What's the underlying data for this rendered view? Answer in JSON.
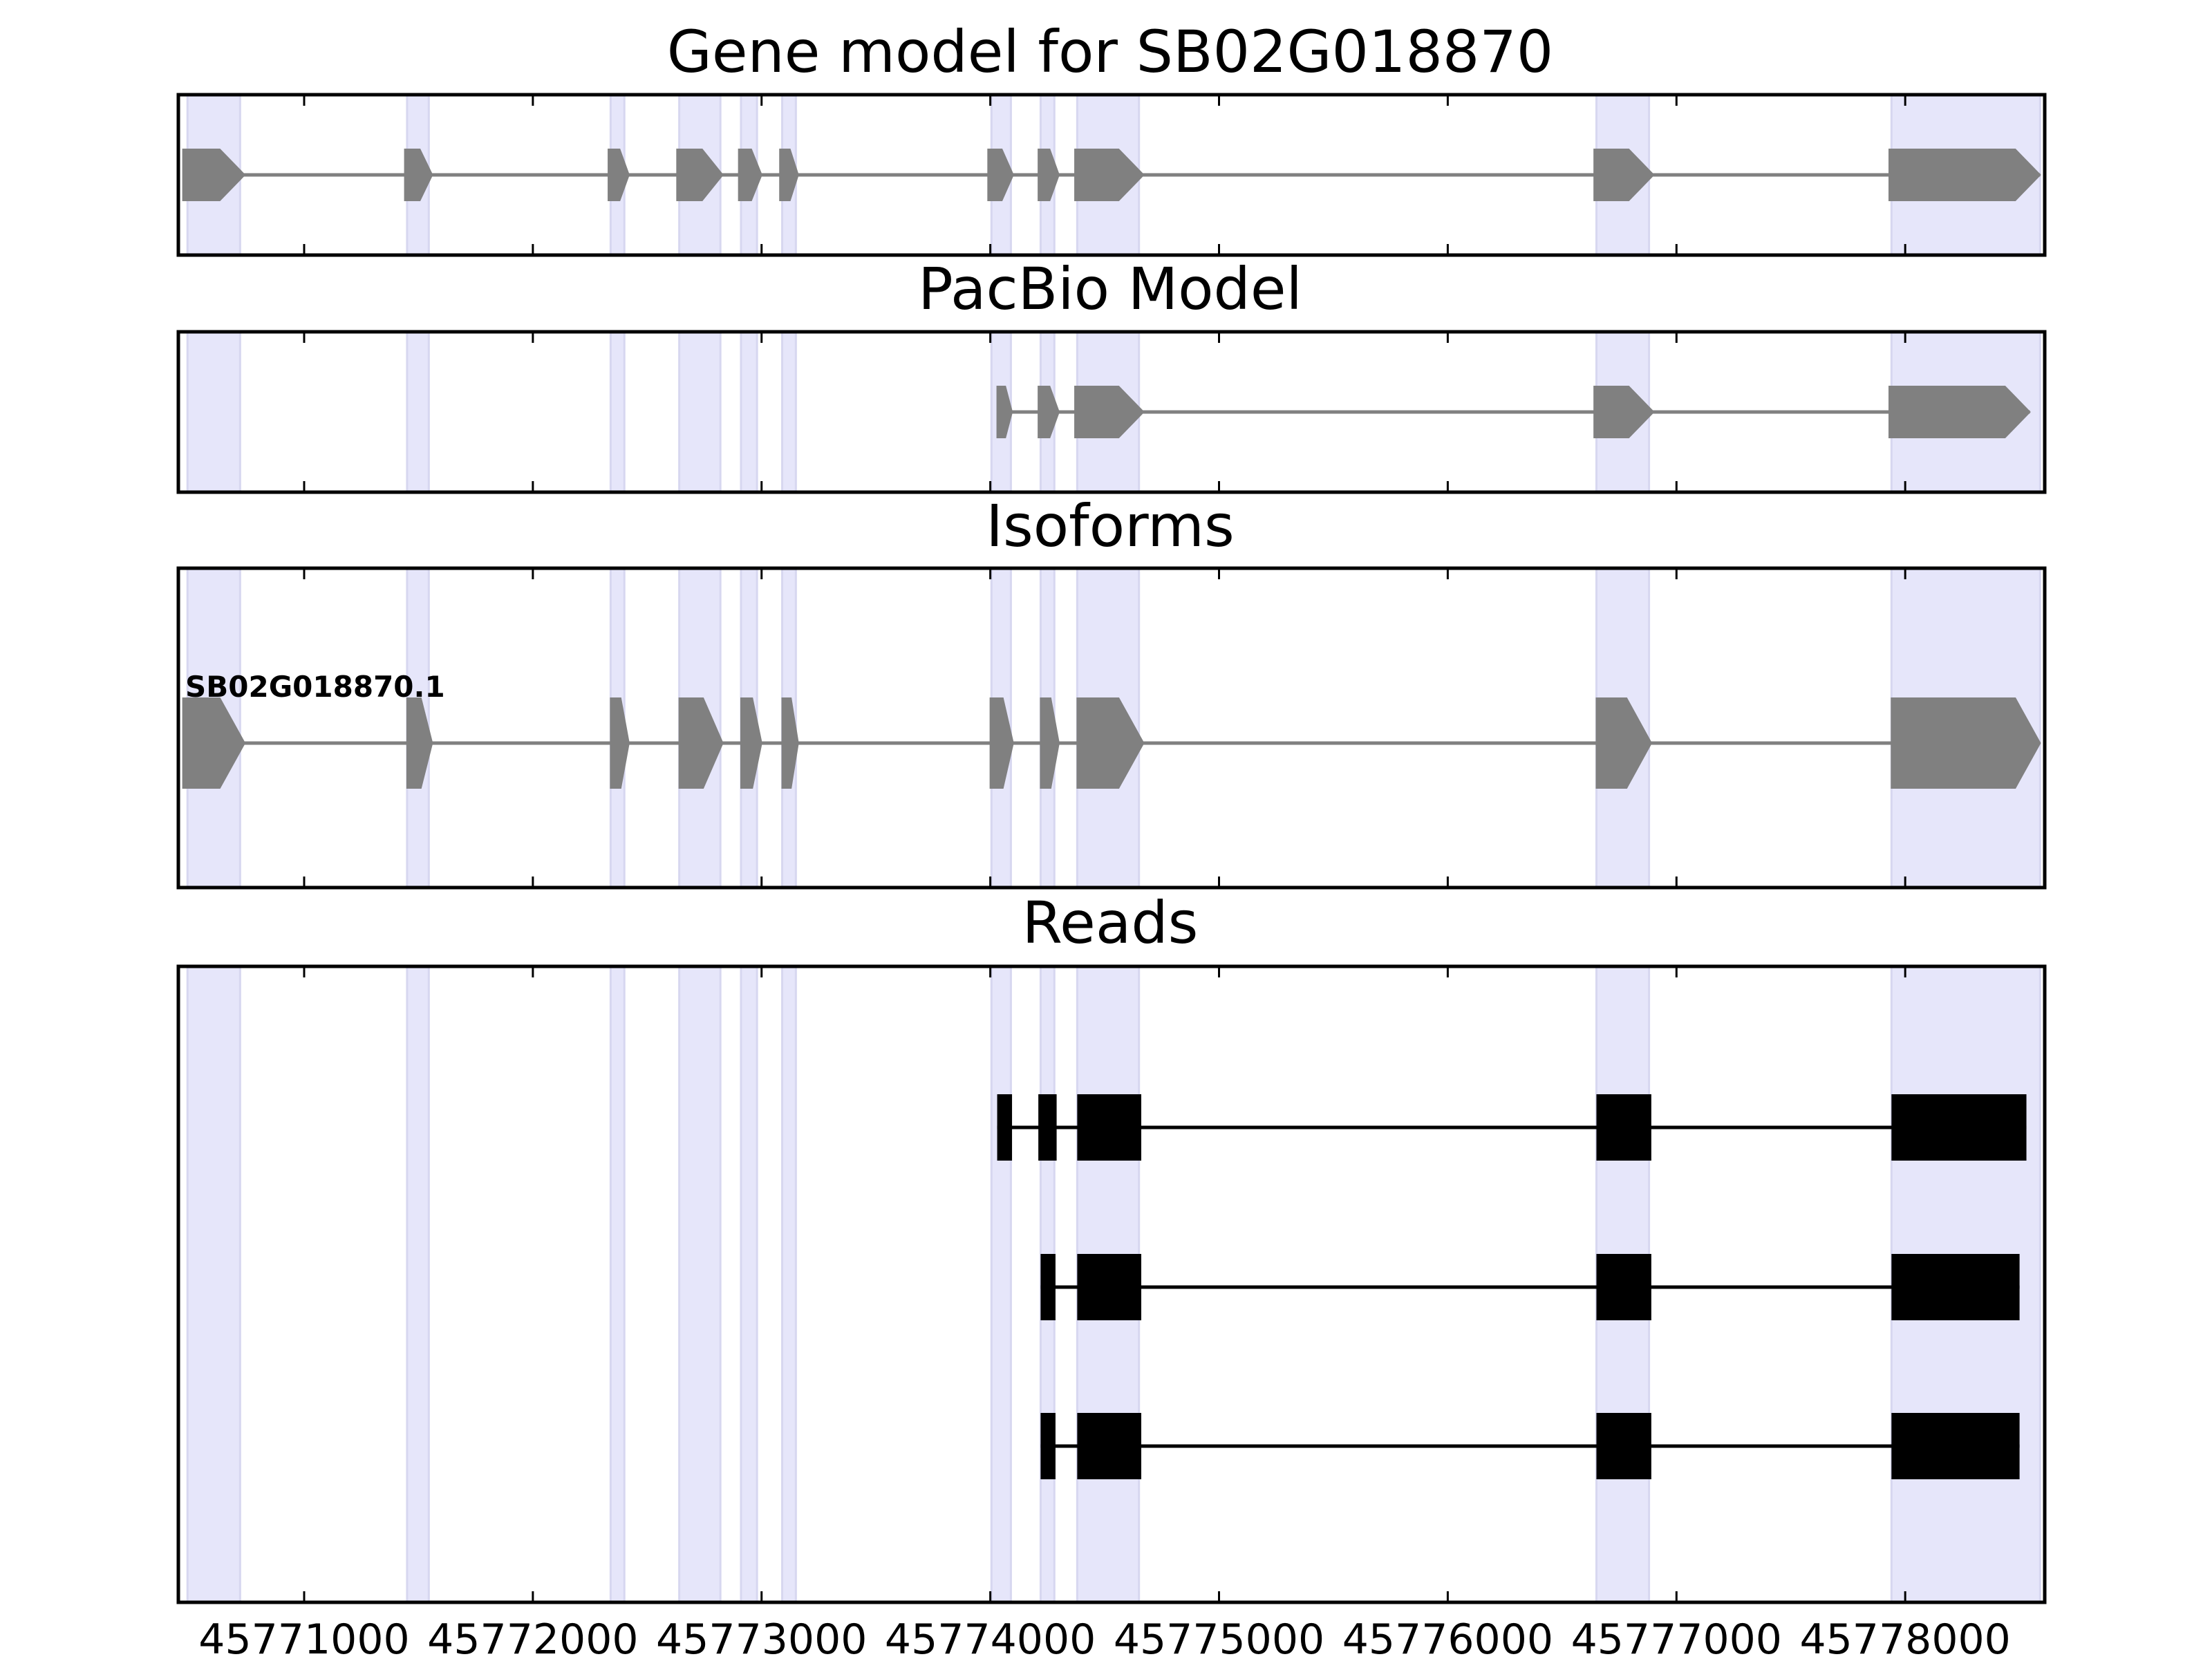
{
  "panels": {
    "gene_model": {
      "title": "Gene model for SB02G018870"
    },
    "pacbio": {
      "title": "PacBio Model"
    },
    "isoforms": {
      "title": "Isoforms"
    },
    "reads": {
      "title": "Reads"
    }
  },
  "colors": {
    "shade": "#e6e6fa",
    "shade_edge": "#d7d7f0",
    "model_fill": "#808080",
    "read_fill": "#000000",
    "frame": "#000000"
  },
  "chart_data": {
    "type": "gene-structure",
    "x_axis": {
      "min": 45770450,
      "max": 45778610,
      "ticks": [
        45771000,
        45772000,
        45773000,
        45774000,
        45775000,
        45776000,
        45777000,
        45778000
      ],
      "tick_labels": [
        "45771000",
        "45772000",
        "45773000",
        "45774000",
        "45775000",
        "45776000",
        "45777000",
        "45778000"
      ]
    },
    "shaded_exon_regions": [
      [
        45770490,
        45770720
      ],
      [
        45771450,
        45771545
      ],
      [
        45772340,
        45772400
      ],
      [
        45772640,
        45772820
      ],
      [
        45772910,
        45772980
      ],
      [
        45773090,
        45773150
      ],
      [
        45774005,
        45774090
      ],
      [
        45774220,
        45774280
      ],
      [
        45774380,
        45774650
      ],
      [
        45776650,
        45776880
      ],
      [
        45777940,
        45778590
      ]
    ],
    "gene_model": {
      "strand": "+",
      "exons": [
        [
          45770470,
          45770740
        ],
        [
          45771440,
          45771560
        ],
        [
          45772330,
          45772420
        ],
        [
          45772630,
          45772830
        ],
        [
          45772900,
          45773000
        ],
        [
          45773080,
          45773160
        ],
        [
          45773990,
          45774100
        ],
        [
          45774210,
          45774300
        ],
        [
          45774370,
          45774670
        ],
        [
          45776640,
          45776900
        ],
        [
          45777930,
          45778590
        ]
      ]
    },
    "pacbio_model": {
      "strand": "+",
      "exons": [
        [
          45774030,
          45774095
        ],
        [
          45774210,
          45774300
        ],
        [
          45774370,
          45774670
        ],
        [
          45776640,
          45776900
        ],
        [
          45777930,
          45778545
        ]
      ]
    },
    "isoforms": [
      {
        "name": "SB02G018870.1",
        "strand": "+",
        "exons": [
          [
            45770470,
            45770740
          ],
          [
            45771450,
            45771560
          ],
          [
            45772340,
            45772420
          ],
          [
            45772640,
            45772830
          ],
          [
            45772910,
            45773000
          ],
          [
            45773090,
            45773160
          ],
          [
            45774000,
            45774100
          ],
          [
            45774220,
            45774300
          ],
          [
            45774380,
            45774670
          ],
          [
            45776650,
            45776890
          ],
          [
            45777940,
            45778590
          ]
        ]
      }
    ],
    "reads": [
      {
        "exons": [
          [
            45774030,
            45774095
          ],
          [
            45774210,
            45774290
          ],
          [
            45774380,
            45774660
          ],
          [
            45776650,
            45776890
          ],
          [
            45777940,
            45778530
          ]
        ]
      },
      {
        "exons": [
          [
            45774220,
            45774285
          ],
          [
            45774380,
            45774660
          ],
          [
            45776650,
            45776890
          ],
          [
            45777940,
            45778500
          ]
        ]
      },
      {
        "exons": [
          [
            45774220,
            45774285
          ],
          [
            45774380,
            45774660
          ],
          [
            45776650,
            45776890
          ],
          [
            45777940,
            45778500
          ]
        ]
      }
    ]
  }
}
